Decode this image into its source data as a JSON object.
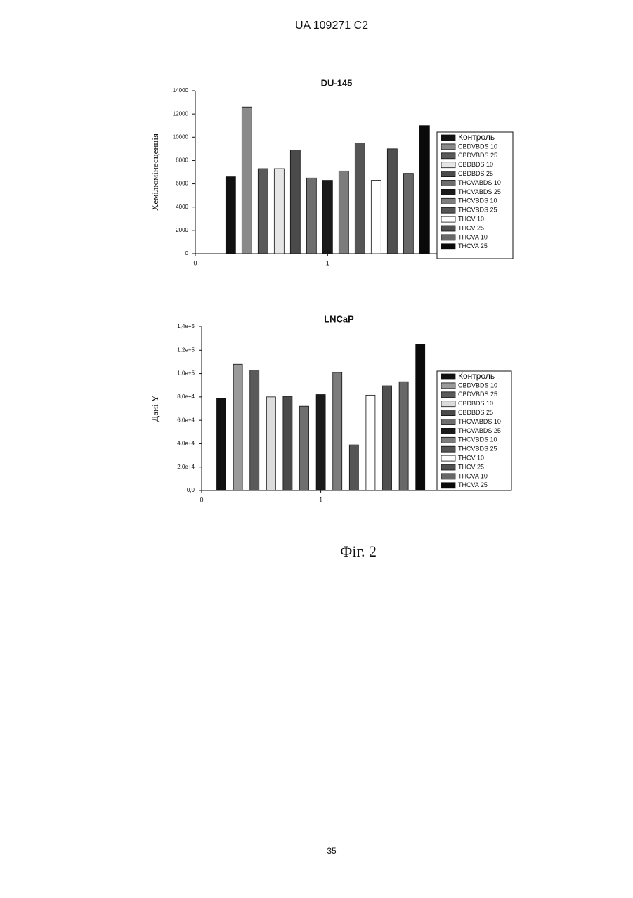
{
  "header": "UA   109271   C2",
  "chart_data": [
    {
      "type": "bar",
      "title": "DU-145",
      "y_label": "Хемілюмінесценція",
      "x": [
        1
      ],
      "xlim": [
        0,
        2.4
      ],
      "xticks": [
        0,
        1
      ],
      "ylim": [
        0,
        14000
      ],
      "yticks": [
        0,
        2000,
        4000,
        6000,
        8000,
        10000,
        12000,
        14000
      ],
      "series": [
        {
          "name": "Контроль",
          "color": "#111111",
          "values": [
            6600
          ]
        },
        {
          "name": "CBDVBDS 10",
          "color": "#8a8a8a",
          "values": [
            12600
          ]
        },
        {
          "name": "CBDVBDS 25",
          "color": "#5a5a5a",
          "values": [
            7300
          ]
        },
        {
          "name": "CBDBDS 10",
          "color": "#e6e6e6",
          "values": [
            7300
          ]
        },
        {
          "name": "CBDBDS 25",
          "color": "#4a4a4a",
          "values": [
            8900
          ]
        },
        {
          "name": "THCVABDS 10",
          "color": "#6e6e6e",
          "values": [
            6500
          ]
        },
        {
          "name": "THCVABDS 25",
          "color": "#1a1a1a",
          "values": [
            6300
          ]
        },
        {
          "name": "THCVBDS 10",
          "color": "#7c7c7c",
          "values": [
            7100
          ]
        },
        {
          "name": "THCVBDS 25",
          "color": "#555555",
          "values": [
            9500
          ]
        },
        {
          "name": "THCV 10",
          "color": "#ffffff",
          "values": [
            6300
          ]
        },
        {
          "name": "THCV 25",
          "color": "#505050",
          "values": [
            9000
          ]
        },
        {
          "name": "THCVA 10",
          "color": "#686868",
          "values": [
            6900
          ]
        },
        {
          "name": "THCVA 25",
          "color": "#0a0a0a",
          "values": [
            11000
          ]
        }
      ]
    },
    {
      "type": "bar",
      "title": "LNCaP",
      "y_label": "Дані Y",
      "x": [
        1
      ],
      "xlim": [
        0,
        2.6
      ],
      "xticks": [
        0,
        1
      ],
      "ylim": [
        0,
        140000
      ],
      "yticks": [
        {
          "value": 0,
          "label": "0,0"
        },
        {
          "value": 20000,
          "label": "2,0e+4"
        },
        {
          "value": 40000,
          "label": "4,0e+4"
        },
        {
          "value": 60000,
          "label": "6,0e+4"
        },
        {
          "value": 80000,
          "label": "8,0e+4"
        },
        {
          "value": 100000,
          "label": "1,0e+5"
        },
        {
          "value": 120000,
          "label": "1,2e+5"
        },
        {
          "value": 140000,
          "label": "1,4e+5"
        }
      ],
      "series": [
        {
          "name": "Контроль",
          "color": "#111111",
          "values": [
            79000
          ]
        },
        {
          "name": "CBDVBDS 10",
          "color": "#9a9a9a",
          "values": [
            108000
          ]
        },
        {
          "name": "CBDVBDS 25",
          "color": "#5a5a5a",
          "values": [
            103000
          ]
        },
        {
          "name": "CBDBDS 10",
          "color": "#dcdcdc",
          "values": [
            80000
          ]
        },
        {
          "name": "CBDBDS 25",
          "color": "#4a4a4a",
          "values": [
            80500
          ]
        },
        {
          "name": "THCVABDS 10",
          "color": "#6e6e6e",
          "values": [
            72000
          ]
        },
        {
          "name": "THCVABDS 25",
          "color": "#1a1a1a",
          "values": [
            82000
          ]
        },
        {
          "name": "THCVBDS 10",
          "color": "#7c7c7c",
          "values": [
            101000
          ]
        },
        {
          "name": "THCVBDS 25",
          "color": "#555555",
          "values": [
            39000
          ]
        },
        {
          "name": "THCV 10",
          "color": "#ffffff",
          "values": [
            81500
          ]
        },
        {
          "name": "THCV 25",
          "color": "#505050",
          "values": [
            89500
          ]
        },
        {
          "name": "THCVA 10",
          "color": "#686868",
          "values": [
            93000
          ]
        },
        {
          "name": "THCVA 25",
          "color": "#0a0a0a",
          "values": [
            125000
          ]
        }
      ]
    }
  ],
  "caption": "Фіг. 2",
  "page_number": "35"
}
